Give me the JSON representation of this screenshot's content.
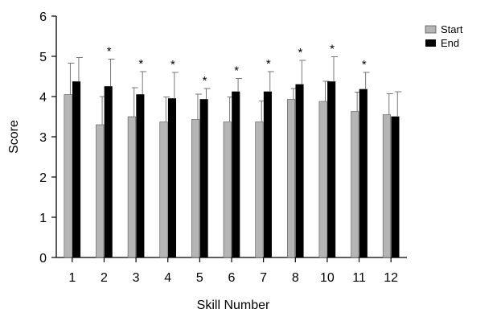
{
  "chart_data": {
    "type": "bar",
    "title": "",
    "xlabel": "Skill Number",
    "ylabel": "Score",
    "ylim": [
      0,
      6
    ],
    "yticks": [
      "0",
      "1",
      "2",
      "3",
      "4",
      "5",
      "6"
    ],
    "grid": false,
    "legend_position": "top-right",
    "categories": [
      "1",
      "2",
      "3",
      "4",
      "5",
      "6",
      "7",
      "8",
      "10",
      "11",
      "12"
    ],
    "series": [
      {
        "name": "Start",
        "color": "#b5b5b5",
        "values": [
          4.05,
          3.3,
          3.5,
          3.37,
          3.43,
          3.37,
          3.37,
          3.93,
          3.88,
          3.63,
          3.55
        ],
        "errors": [
          0.78,
          0.7,
          0.72,
          0.62,
          0.63,
          0.62,
          0.52,
          0.27,
          0.5,
          0.48,
          0.52
        ]
      },
      {
        "name": "End",
        "color": "#000000",
        "values": [
          4.37,
          4.25,
          4.05,
          3.95,
          3.93,
          4.12,
          4.12,
          4.3,
          4.37,
          4.18,
          3.5
        ],
        "errors": [
          0.6,
          0.68,
          0.57,
          0.65,
          0.27,
          0.33,
          0.5,
          0.6,
          0.62,
          0.42,
          0.62
        ]
      }
    ],
    "significance_marker": "*",
    "significant": [
      false,
      true,
      true,
      true,
      true,
      true,
      true,
      true,
      true,
      true,
      false
    ]
  }
}
